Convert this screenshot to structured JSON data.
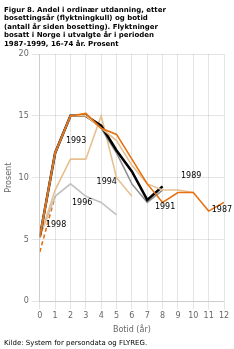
{
  "chart_data": {
    "type": "line",
    "title": [
      "Figur 8. Andel i ordinær utdanning, etter",
      "bosettingsår (flyktningkull) og botid",
      "(antall år siden bosetting). Flyktninger",
      "bosatt i Norge i utvalgte år i perioden",
      "1987-1999, 16-74 år. Prosent"
    ],
    "y_label": "Prosent",
    "x_label": "Botid (år)",
    "source": "Kilde: System for persondata og FLYREG.",
    "xlim": [
      0,
      12
    ],
    "ylim": [
      0,
      20
    ],
    "xticks": [
      0,
      1,
      2,
      3,
      4,
      5,
      6,
      7,
      8,
      9,
      10,
      11,
      12
    ],
    "yticks": [
      0,
      5,
      10,
      15,
      20
    ],
    "grid": true,
    "series": [
      {
        "name": "1987",
        "color": "#E87010",
        "line_style": "solid",
        "x": [
          0,
          1,
          2,
          3,
          4,
          5,
          6,
          7,
          8,
          9,
          10,
          11,
          12
        ],
        "values": [
          5.2,
          12.0,
          15.0,
          15.2,
          14.0,
          13.5,
          11.5,
          9.5,
          8.0,
          8.8,
          8.8,
          7.3,
          8.0
        ]
      },
      {
        "name": "1989",
        "color": "#E8C090",
        "line_style": "solid",
        "x": [
          0,
          1,
          2,
          3,
          4,
          5,
          6,
          7,
          8,
          9,
          10
        ],
        "values": [
          5.2,
          12.0,
          15.0,
          15.0,
          14.0,
          13.0,
          11.0,
          9.5,
          9.0,
          9.0,
          8.8
        ]
      },
      {
        "name": "1991",
        "color": "#000000",
        "line_style": "solid",
        "x": [
          0,
          1,
          2,
          3,
          4,
          5,
          6,
          7,
          8
        ],
        "values": [
          5.2,
          12.0,
          15.0,
          15.0,
          14.2,
          12.2,
          10.5,
          8.2,
          9.3
        ]
      },
      {
        "name": "1993",
        "color": "#909090",
        "line_style": "solid",
        "x": [
          0,
          1,
          2,
          3,
          4,
          5,
          6,
          7,
          8
        ],
        "values": [
          5.2,
          12.0,
          15.0,
          15.0,
          14.0,
          12.0,
          9.5,
          8.0,
          9.0
        ]
      },
      {
        "name": "1994",
        "color": "#E8C090",
        "line_style": "solid",
        "x": [
          0,
          1,
          2,
          3,
          4,
          5,
          6
        ],
        "values": [
          5.2,
          9.0,
          11.5,
          11.5,
          15.0,
          10.0,
          8.5
        ]
      },
      {
        "name": "1996",
        "color": "#C0C0C0",
        "line_style": "solid",
        "x": [
          0,
          1,
          2,
          3,
          4,
          5
        ],
        "values": [
          5.2,
          8.5,
          9.5,
          8.5,
          8.0,
          7.0
        ]
      },
      {
        "name": "1998",
        "color": "#E87010",
        "line_style": "dashed",
        "x": [
          0,
          1
        ],
        "values": [
          4.0,
          8.5
        ]
      }
    ],
    "annotations": [
      {
        "text": "1987",
        "x": 11.2,
        "y": 7.2
      },
      {
        "text": "1989",
        "x": 9.2,
        "y": 10.0
      },
      {
        "text": "1991",
        "x": 7.5,
        "y": 7.5
      },
      {
        "text": "1993",
        "x": 1.7,
        "y": 12.8
      },
      {
        "text": "1994",
        "x": 3.7,
        "y": 9.5
      },
      {
        "text": "1996",
        "x": 2.1,
        "y": 7.8
      },
      {
        "text": "1998",
        "x": 0.4,
        "y": 6.0
      }
    ]
  }
}
